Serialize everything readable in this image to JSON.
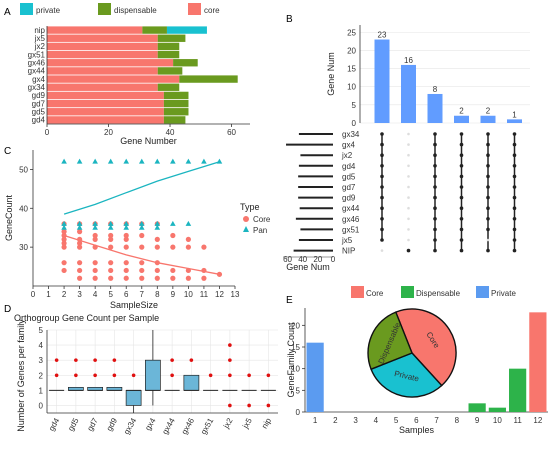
{
  "panel_letters": [
    "A",
    "B",
    "C",
    "D",
    "E"
  ],
  "colors": {
    "private": "#19C1D0",
    "dispensable": "#6A9A1F",
    "core": "#F8766D",
    "upset_bar": "#619CFF",
    "pan_teal": "#1BB5C0",
    "red_point": "#E01010",
    "box_fill": "#6BB6D8",
    "e_core": "#F8766D",
    "e_disp": "#2DB34A",
    "e_private": "#5B9BF0",
    "grid": "#E6E6E6"
  },
  "chart_data": [
    {
      "panel": "A",
      "type": "bar",
      "orientation": "horizontal",
      "stacked": true,
      "legend": [
        "private",
        "dispensable",
        "core"
      ],
      "legend_position": "top",
      "xlabel": "Gene Number",
      "xlim": [
        0,
        66
      ],
      "xticks": [
        "0",
        "20",
        "40",
        "60"
      ],
      "categories": [
        "nip",
        "jx5",
        "jx2",
        "gx51",
        "gx46",
        "gx44",
        "gx4",
        "gx34",
        "gd9",
        "gd7",
        "gd5",
        "gd4"
      ],
      "series": [
        {
          "name": "core",
          "values": [
            31,
            36,
            36,
            36,
            41,
            36,
            43,
            36,
            38,
            38,
            38,
            38
          ]
        },
        {
          "name": "dispensable",
          "values": [
            8,
            9,
            7,
            7,
            8,
            8,
            19,
            7,
            8,
            8,
            8,
            7
          ]
        },
        {
          "name": "private",
          "values": [
            13,
            0,
            0,
            0,
            0,
            0,
            0,
            0,
            0,
            0,
            0,
            0
          ]
        }
      ]
    },
    {
      "panel": "B",
      "type": "bar",
      "subtype": "upset",
      "ylabel": "Gene Num",
      "ylim": [
        0,
        27
      ],
      "yticks": [
        "0",
        "5",
        "10",
        "15",
        "20",
        "25"
      ],
      "intersection_sizes": [
        23,
        16,
        8,
        2,
        2,
        1
      ],
      "intersection_labels": [
        "23",
        "16",
        "8",
        "2",
        "2",
        "1"
      ],
      "sets": [
        "gx34",
        "gx4",
        "jx2",
        "gd4",
        "gd5",
        "gd7",
        "gd9",
        "gx44",
        "gx46",
        "gx51",
        "jx5",
        "NIP"
      ],
      "set_sizes": [
        45,
        62,
        43,
        45,
        46,
        46,
        46,
        44,
        49,
        43,
        45,
        52
      ],
      "set_size_xlabel": "Gene Num",
      "set_size_ticks": [
        "60",
        "40",
        "20",
        "0"
      ],
      "set_size_xlim": [
        0,
        66
      ],
      "membership": [
        [
          1,
          1,
          1,
          1,
          1,
          1,
          1,
          1,
          1,
          1,
          1,
          0
        ],
        [
          0,
          0,
          0,
          0,
          0,
          0,
          0,
          0,
          0,
          0,
          0,
          1
        ],
        [
          1,
          1,
          1,
          1,
          1,
          1,
          1,
          1,
          1,
          1,
          1,
          1
        ],
        [
          1,
          1,
          1,
          1,
          1,
          1,
          1,
          1,
          1,
          1,
          1,
          1
        ],
        [
          1,
          1,
          1,
          1,
          1,
          1,
          1,
          1,
          1,
          1,
          0,
          1
        ],
        [
          1,
          1,
          1,
          1,
          1,
          1,
          1,
          1,
          1,
          1,
          1,
          1
        ]
      ]
    },
    {
      "panel": "C",
      "type": "scatter",
      "xlabel": "SampleSize",
      "ylabel": "GeneCount",
      "xlim": [
        0,
        13
      ],
      "ylim": [
        20,
        55
      ],
      "xticks": [
        "0",
        "1",
        "2",
        "3",
        "4",
        "5",
        "6",
        "7",
        "8",
        "9",
        "10",
        "11",
        "12",
        "13"
      ],
      "yticks": [
        "30",
        "40",
        "50"
      ],
      "legend_title": "Type",
      "legend": [
        "Core",
        "Pan"
      ],
      "core_points": [
        [
          2,
          36
        ],
        [
          2,
          34
        ],
        [
          2,
          33
        ],
        [
          2,
          32
        ],
        [
          2,
          31
        ],
        [
          2,
          30
        ],
        [
          2,
          26
        ],
        [
          2,
          24
        ],
        [
          3,
          36
        ],
        [
          3,
          34
        ],
        [
          3,
          32
        ],
        [
          3,
          31
        ],
        [
          3,
          30
        ],
        [
          3,
          26
        ],
        [
          3,
          24
        ],
        [
          3,
          22
        ],
        [
          4,
          36
        ],
        [
          4,
          33
        ],
        [
          4,
          32
        ],
        [
          4,
          30
        ],
        [
          4,
          26
        ],
        [
          4,
          24
        ],
        [
          4,
          22
        ],
        [
          5,
          36
        ],
        [
          5,
          33
        ],
        [
          5,
          32
        ],
        [
          5,
          30
        ],
        [
          5,
          26
        ],
        [
          5,
          24
        ],
        [
          5,
          22
        ],
        [
          6,
          36
        ],
        [
          6,
          33
        ],
        [
          6,
          32
        ],
        [
          6,
          30
        ],
        [
          6,
          26
        ],
        [
          6,
          24
        ],
        [
          6,
          22
        ],
        [
          7,
          36
        ],
        [
          7,
          33
        ],
        [
          7,
          30
        ],
        [
          7,
          26
        ],
        [
          7,
          24
        ],
        [
          7,
          22
        ],
        [
          8,
          36
        ],
        [
          8,
          32
        ],
        [
          8,
          30
        ],
        [
          8,
          26
        ],
        [
          8,
          24
        ],
        [
          8,
          22
        ],
        [
          9,
          33
        ],
        [
          9,
          30
        ],
        [
          9,
          24
        ],
        [
          9,
          22
        ],
        [
          10,
          32
        ],
        [
          10,
          30
        ],
        [
          10,
          24
        ],
        [
          10,
          22
        ],
        [
          11,
          30
        ],
        [
          11,
          24
        ],
        [
          11,
          22
        ],
        [
          12,
          23
        ]
      ],
      "pan_points": [
        [
          2,
          52
        ],
        [
          3,
          52
        ],
        [
          4,
          52
        ],
        [
          5,
          52
        ],
        [
          6,
          52
        ],
        [
          7,
          52
        ],
        [
          8,
          52
        ],
        [
          9,
          52
        ],
        [
          10,
          52
        ],
        [
          11,
          52
        ],
        [
          12,
          52
        ],
        [
          2,
          36
        ],
        [
          3,
          36
        ],
        [
          4,
          36
        ],
        [
          5,
          36
        ],
        [
          6,
          36
        ],
        [
          7,
          36
        ],
        [
          8,
          36
        ],
        [
          9,
          36
        ],
        [
          10,
          36
        ],
        [
          2,
          35
        ],
        [
          3,
          35
        ],
        [
          4,
          35
        ],
        [
          5,
          35
        ],
        [
          6,
          35
        ],
        [
          7,
          35
        ],
        [
          8,
          35
        ]
      ],
      "core_trend": [
        [
          2,
          33
        ],
        [
          4,
          30.5
        ],
        [
          6,
          28
        ],
        [
          8,
          26
        ],
        [
          10,
          24.5
        ],
        [
          12,
          23
        ]
      ],
      "pan_trend": [
        [
          2,
          38.5
        ],
        [
          4,
          41
        ],
        [
          6,
          44
        ],
        [
          8,
          47
        ],
        [
          10,
          49.5
        ],
        [
          12,
          52
        ]
      ]
    },
    {
      "panel": "D",
      "type": "box",
      "title": "Orthogroup Gene Count per Sample",
      "ylabel": "Number of Genes per family",
      "ylim": [
        -0.5,
        5
      ],
      "yticks": [
        "0",
        "1",
        "2",
        "3",
        "4",
        "5"
      ],
      "categories": [
        "gd4",
        "gd5",
        "gd7",
        "gd9",
        "gx34",
        "gx4",
        "gx44",
        "gx46",
        "gx51",
        "jx2",
        "jx5",
        "nip"
      ],
      "boxes": [
        {
          "q1": 1,
          "median": 1,
          "q3": 1,
          "lo": 1,
          "hi": 1
        },
        {
          "q1": 1,
          "median": 1,
          "q3": 1.2,
          "lo": 1,
          "hi": 1.2
        },
        {
          "q1": 1,
          "median": 1,
          "q3": 1.2,
          "lo": 1,
          "hi": 1.2
        },
        {
          "q1": 1,
          "median": 1,
          "q3": 1.2,
          "lo": 1,
          "hi": 1.2
        },
        {
          "q1": 0,
          "median": 1,
          "q3": 1,
          "lo": -0.5,
          "hi": 1
        },
        {
          "q1": 1,
          "median": 1,
          "q3": 3,
          "lo": 0,
          "hi": 5
        },
        {
          "q1": 1,
          "median": 1,
          "q3": 1,
          "lo": 1,
          "hi": 1
        },
        {
          "q1": 1,
          "median": 1,
          "q3": 2,
          "lo": 1,
          "hi": 2
        },
        {
          "q1": 1,
          "median": 1,
          "q3": 1,
          "lo": 1,
          "hi": 1
        },
        {
          "q1": 1,
          "median": 1,
          "q3": 1,
          "lo": 1,
          "hi": 1
        },
        {
          "q1": 1,
          "median": 1,
          "q3": 1,
          "lo": 1,
          "hi": 1
        },
        {
          "q1": 1,
          "median": 1,
          "q3": 1,
          "lo": 1,
          "hi": 1
        }
      ],
      "outliers": [
        [
          0,
          3
        ],
        [
          0,
          2
        ],
        [
          1,
          3
        ],
        [
          1,
          2
        ],
        [
          2,
          3
        ],
        [
          2,
          2
        ],
        [
          3,
          3
        ],
        [
          3,
          2
        ],
        [
          4,
          2
        ],
        [
          6,
          3
        ],
        [
          6,
          2
        ],
        [
          7,
          3
        ],
        [
          8,
          2
        ],
        [
          9,
          4
        ],
        [
          9,
          3
        ],
        [
          9,
          2
        ],
        [
          9,
          0
        ],
        [
          10,
          2
        ],
        [
          10,
          0
        ],
        [
          11,
          2
        ],
        [
          11,
          0
        ]
      ]
    },
    {
      "panel": "E",
      "type": "bar",
      "xlabel": "Samples",
      "ylabel": "GeneFamily Count",
      "ylim": [
        0,
        24
      ],
      "yticks": [
        "0",
        "5",
        "10",
        "15",
        "20"
      ],
      "categories": [
        "1",
        "2",
        "3",
        "4",
        "5",
        "6",
        "7",
        "8",
        "9",
        "10",
        "11",
        "12"
      ],
      "values": [
        16,
        0,
        0,
        0,
        0,
        0,
        0,
        0,
        2,
        1,
        10,
        23
      ],
      "bar_groups": [
        "Private",
        "",
        "",
        "",
        "",
        "",
        "",
        "",
        "Dispensable",
        "Dispensable",
        "Dispensable",
        "Core"
      ],
      "legend": [
        "Core",
        "Dispensable",
        "Private"
      ],
      "legend_position": "top",
      "pie": {
        "slices": [
          {
            "label": "Core",
            "value": 23
          },
          {
            "label": "Private",
            "value": 16
          },
          {
            "label": "Dispensable",
            "value": 13
          }
        ]
      }
    }
  ]
}
